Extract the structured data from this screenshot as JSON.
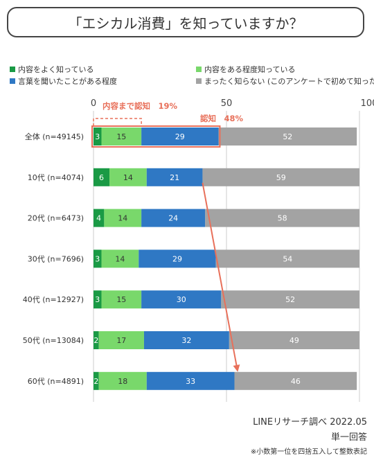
{
  "title": "「エシカル消費」を知っていますか？",
  "chart_data": {
    "type": "bar",
    "orientation": "horizontal",
    "stacked": true,
    "categories": [
      "全体 (n=49145)",
      "10代 (n=4074)",
      "20代 (n=6473)",
      "30代 (n=7696)",
      "40代 (n=12927)",
      "50代 (n=13084)",
      "60代 (n=4891)"
    ],
    "series": [
      {
        "name": "内容をよく知っている",
        "color": "#1a9a45",
        "values": [
          3,
          6,
          4,
          3,
          3,
          2,
          2
        ]
      },
      {
        "name": "内容をある程度知っている",
        "color": "#79d86b",
        "values": [
          15,
          14,
          14,
          14,
          15,
          17,
          18
        ]
      },
      {
        "name": "言葉を聞いたことがある程度",
        "color": "#2f78c4",
        "values": [
          29,
          21,
          24,
          29,
          30,
          32,
          33
        ]
      },
      {
        "name": "まったく知らない (このアンケートで初めて知った)",
        "color": "#a3a3a3",
        "values": [
          52,
          59,
          58,
          54,
          52,
          49,
          46
        ]
      }
    ],
    "xlim": [
      0,
      100
    ],
    "xticks": [
      0,
      50,
      100
    ],
    "grid": true,
    "legend_position": "top",
    "annotations": [
      {
        "text": "内容まで認知　19%",
        "color": "#e8705a"
      },
      {
        "text": "認知　48%",
        "color": "#e8705a"
      }
    ]
  },
  "footer": {
    "source": "LINEリサーチ調べ 2022.05",
    "answer_type": "単一回答",
    "note": "※小数第一位を四捨五入して整数表記"
  }
}
